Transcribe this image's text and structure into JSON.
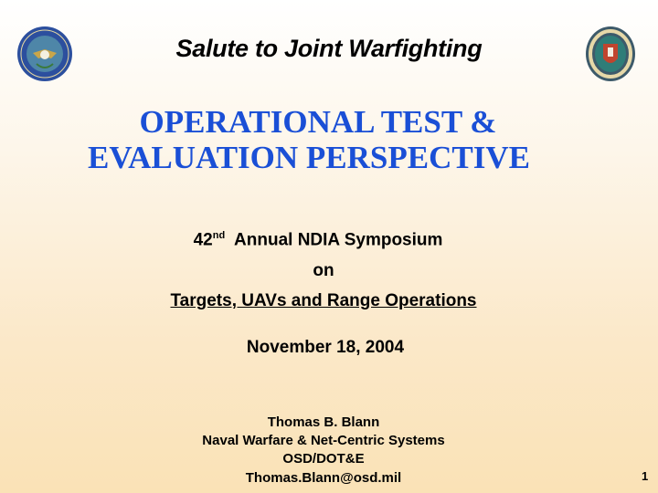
{
  "header": {
    "subtitle": "Salute to Joint Warfighting",
    "left_seal": "department-of-defense-seal",
    "right_seal": "operational-test-and-evaluation-director-seal"
  },
  "title": {
    "line1": "OPERATIONAL TEST &",
    "line2": "EVALUATION PERSPECTIVE",
    "color": "#1a4fd6"
  },
  "event": {
    "ordinal_number": "42",
    "ordinal_suffix": "nd",
    "name": "Annual NDIA Symposium",
    "on": "on",
    "topic": "Targets, UAVs and Range Operations",
    "date": "November 18, 2004"
  },
  "author": {
    "name": "Thomas B. Blann",
    "division": "Naval Warfare & Net-Centric Systems",
    "office": "OSD/DOT&E",
    "email": "Thomas.Blann@osd.mil"
  },
  "page_number": "1"
}
